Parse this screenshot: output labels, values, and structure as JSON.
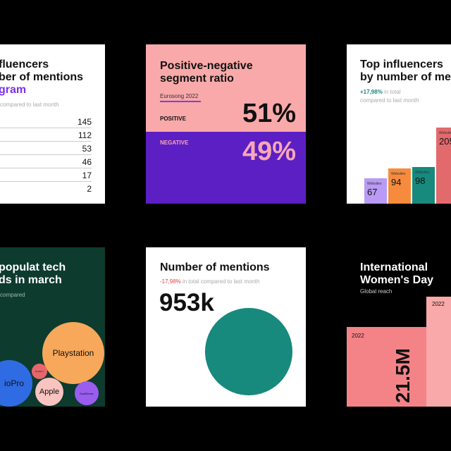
{
  "card1": {
    "title_line1": "fluencers",
    "title_line2": "ber of mentions",
    "title_line3": "gram",
    "subtitle": "compared to last month",
    "rows": [
      "145",
      "112",
      "53",
      "46",
      "17",
      "2"
    ]
  },
  "card2": {
    "title_line1": "Positive-negative",
    "title_line2": "segment ratio",
    "tag": "Eurosong 2022",
    "positive_label": "POSITIVE",
    "positive_value": "51%",
    "negative_label": "NEGATIVE",
    "negative_value": "49%",
    "colors": {
      "top": "#f9a9a9",
      "bottom": "#5b1fc4",
      "accent": "#7b3fe4",
      "negative_text": "#f8a7b5"
    }
  },
  "card3": {
    "title_line1": "Top influencers",
    "title_line2": "by number of me",
    "change": "+17,98%",
    "change_rest": "in total",
    "subtitle2": "compared to last month",
    "bars": [
      {
        "label": "Websites",
        "value": "67",
        "fraction": 0.33,
        "color": "#b99af4"
      },
      {
        "label": "Websites",
        "value": "94",
        "fraction": 0.46,
        "color": "#f68b3d"
      },
      {
        "label": "Websites",
        "value": "98",
        "fraction": 0.48,
        "color": "#17897d"
      },
      {
        "label": "Websites",
        "value": "205",
        "fraction": 1.0,
        "color": "#e26a6d"
      }
    ]
  },
  "card4": {
    "title_line1": "populat tech",
    "title_line2": "ds in march",
    "subtitle": "compared",
    "bubbles": [
      {
        "label": "Playstation",
        "color": "#f7a85a"
      },
      {
        "label": "ioPro",
        "color": "#2f6ce3"
      },
      {
        "label": "Apple",
        "color": "#f9c4c0"
      },
      {
        "label": "DualSense",
        "color": "#9a5df0"
      },
      {
        "label": "Evolitron",
        "color": "#e5676b"
      }
    ]
  },
  "card5": {
    "title": "Number of mentions",
    "change": "-17,98%",
    "change_rest": "in total compared to last month",
    "value": "953k",
    "circle_color": "#17897d"
  },
  "card6": {
    "title_line1": "International",
    "title_line2": "Women's Day",
    "subtitle": "Global reach",
    "bar1_label": "2022",
    "bar1_value": "21.5M",
    "bar2_label": "2022",
    "colors": {
      "bar1": "#f48387",
      "bar2": "#f9a9a9"
    }
  }
}
